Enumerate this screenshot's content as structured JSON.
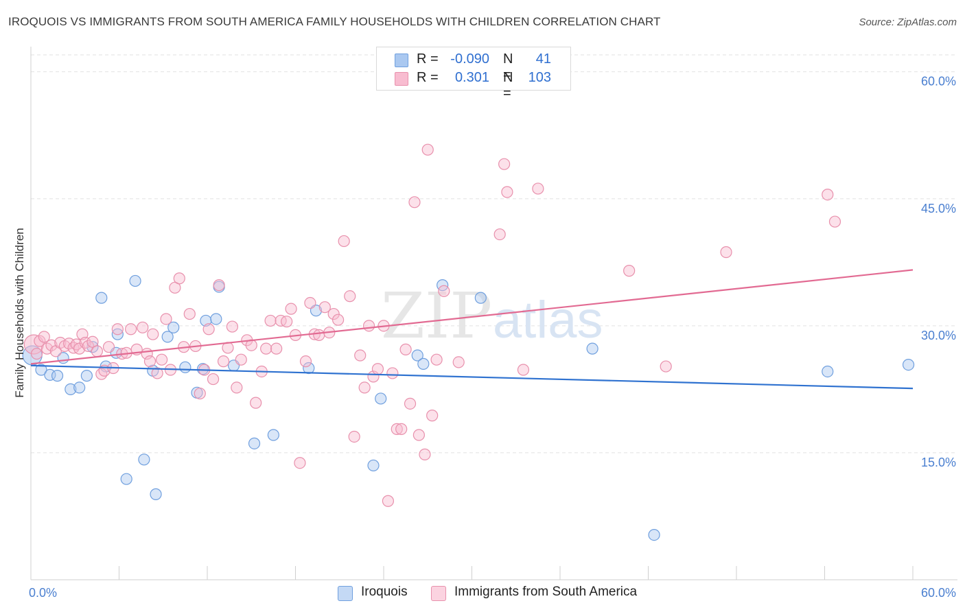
{
  "title": "IROQUOIS VS IMMIGRANTS FROM SOUTH AMERICA FAMILY HOUSEHOLDS WITH CHILDREN CORRELATION CHART",
  "source": "Source: ZipAtlas.com",
  "watermark": {
    "zip": "ZIP",
    "atlas": "atlas"
  },
  "legend_top": {
    "rows": [
      {
        "r_label": "R =",
        "r_value": "-0.090",
        "n_label": "N =",
        "n_value": "41"
      },
      {
        "r_label": "R =",
        "r_value": "0.301",
        "n_label": "N =",
        "n_value": "103"
      }
    ]
  },
  "legend_bottom": {
    "series1": "Iroquois",
    "series2": "Immigrants from South America"
  },
  "colors": {
    "series1_fill": "#aac8f0",
    "series1_stroke": "#6f9fde",
    "series1_line": "#2f72d0",
    "series2_fill": "#f8bcd0",
    "series2_stroke": "#e890ac",
    "series2_line": "#e26a92",
    "tick_text": "#4a7fd0",
    "grid": "#e2e2e2"
  },
  "chart_data": {
    "type": "scatter",
    "title": "IROQUOIS VS IMMIGRANTS FROM SOUTH AMERICA FAMILY HOUSEHOLDS WITH CHILDREN CORRELATION CHART",
    "xlabel": "",
    "ylabel": "Family Households with Children",
    "xlim": [
      0,
      60
    ],
    "ylim": [
      0,
      62
    ],
    "y_ticks": [
      15,
      30,
      45,
      60
    ],
    "y_tick_labels": [
      "15.0%",
      "30.0%",
      "45.0%",
      "60.0%"
    ],
    "x_tick_labels": [
      "0.0%",
      "60.0%"
    ],
    "grid": true,
    "legend_placement": "top-center",
    "series": [
      {
        "name": "Iroquois",
        "r": -0.09,
        "n": 41,
        "trend": {
          "x": [
            0,
            60
          ],
          "y": [
            25.3,
            22.6
          ]
        },
        "points": [
          [
            0.1,
            26.5
          ],
          [
            0.7,
            24.8
          ],
          [
            1.3,
            24.2
          ],
          [
            1.8,
            24.1
          ],
          [
            2.2,
            26.2
          ],
          [
            2.7,
            22.5
          ],
          [
            3.3,
            22.7
          ],
          [
            3.8,
            24.1
          ],
          [
            4.2,
            27.5
          ],
          [
            4.8,
            33.3
          ],
          [
            5.1,
            25.2
          ],
          [
            5.8,
            26.8
          ],
          [
            5.9,
            29.0
          ],
          [
            6.5,
            11.9
          ],
          [
            7.1,
            35.3
          ],
          [
            7.7,
            14.2
          ],
          [
            8.3,
            24.7
          ],
          [
            8.5,
            10.1
          ],
          [
            9.3,
            28.7
          ],
          [
            9.7,
            29.8
          ],
          [
            10.5,
            25.1
          ],
          [
            11.3,
            22.1
          ],
          [
            11.7,
            24.9
          ],
          [
            11.9,
            30.6
          ],
          [
            12.6,
            30.8
          ],
          [
            12.8,
            34.6
          ],
          [
            13.8,
            25.3
          ],
          [
            15.2,
            16.1
          ],
          [
            16.5,
            17.1
          ],
          [
            18.9,
            25.0
          ],
          [
            19.4,
            31.8
          ],
          [
            23.3,
            13.5
          ],
          [
            23.8,
            21.4
          ],
          [
            26.3,
            26.5
          ],
          [
            26.7,
            25.5
          ],
          [
            28.0,
            34.8
          ],
          [
            30.6,
            33.3
          ],
          [
            38.2,
            27.3
          ],
          [
            42.4,
            5.3
          ],
          [
            54.2,
            24.6
          ],
          [
            59.7,
            25.4
          ]
        ]
      },
      {
        "name": "Immigrants from South America",
        "r": 0.301,
        "n": 103,
        "trend": {
          "x": [
            0,
            60
          ],
          "y": [
            25.5,
            36.6
          ]
        },
        "points": [
          [
            0.2,
            27.8
          ],
          [
            0.4,
            26.7
          ],
          [
            0.6,
            28.2
          ],
          [
            0.9,
            28.7
          ],
          [
            1.1,
            27.3
          ],
          [
            1.4,
            27.7
          ],
          [
            1.7,
            27.0
          ],
          [
            2.0,
            28.0
          ],
          [
            2.3,
            27.6
          ],
          [
            2.6,
            27.9
          ],
          [
            2.9,
            27.4
          ],
          [
            3.1,
            27.8
          ],
          [
            3.3,
            27.3
          ],
          [
            3.5,
            29.0
          ],
          [
            3.7,
            28.0
          ],
          [
            3.9,
            27.6
          ],
          [
            4.2,
            28.1
          ],
          [
            4.5,
            27.0
          ],
          [
            4.8,
            24.3
          ],
          [
            5.0,
            24.7
          ],
          [
            5.3,
            27.5
          ],
          [
            5.6,
            25.0
          ],
          [
            5.9,
            29.6
          ],
          [
            6.2,
            26.7
          ],
          [
            6.5,
            26.8
          ],
          [
            6.8,
            29.6
          ],
          [
            7.2,
            27.2
          ],
          [
            7.6,
            29.8
          ],
          [
            7.9,
            26.7
          ],
          [
            8.1,
            25.8
          ],
          [
            8.3,
            29.0
          ],
          [
            8.6,
            24.4
          ],
          [
            8.9,
            26.0
          ],
          [
            9.2,
            30.8
          ],
          [
            9.5,
            24.8
          ],
          [
            9.8,
            34.5
          ],
          [
            10.1,
            35.6
          ],
          [
            10.4,
            27.5
          ],
          [
            10.8,
            31.4
          ],
          [
            11.2,
            27.6
          ],
          [
            11.5,
            22.0
          ],
          [
            11.8,
            24.8
          ],
          [
            12.1,
            29.6
          ],
          [
            12.4,
            23.7
          ],
          [
            12.8,
            34.8
          ],
          [
            13.1,
            25.8
          ],
          [
            13.4,
            27.4
          ],
          [
            13.7,
            29.9
          ],
          [
            14.0,
            22.7
          ],
          [
            14.3,
            26.0
          ],
          [
            14.7,
            28.3
          ],
          [
            15.0,
            27.7
          ],
          [
            15.3,
            20.9
          ],
          [
            15.7,
            24.6
          ],
          [
            16.0,
            27.3
          ],
          [
            16.3,
            30.6
          ],
          [
            16.7,
            27.3
          ],
          [
            17.0,
            30.6
          ],
          [
            17.4,
            30.5
          ],
          [
            17.7,
            32.0
          ],
          [
            18.0,
            28.9
          ],
          [
            18.3,
            13.8
          ],
          [
            18.7,
            25.8
          ],
          [
            19.0,
            32.7
          ],
          [
            19.3,
            29.0
          ],
          [
            19.6,
            28.9
          ],
          [
            20.0,
            32.2
          ],
          [
            20.3,
            29.2
          ],
          [
            20.6,
            31.4
          ],
          [
            20.9,
            30.7
          ],
          [
            21.3,
            40.0
          ],
          [
            21.7,
            33.5
          ],
          [
            22.0,
            16.9
          ],
          [
            22.4,
            26.5
          ],
          [
            22.7,
            22.7
          ],
          [
            23.0,
            30.0
          ],
          [
            23.3,
            24.0
          ],
          [
            23.6,
            24.9
          ],
          [
            24.0,
            30.0
          ],
          [
            24.3,
            9.3
          ],
          [
            24.6,
            24.4
          ],
          [
            24.9,
            17.8
          ],
          [
            25.2,
            17.8
          ],
          [
            25.5,
            27.2
          ],
          [
            25.8,
            20.8
          ],
          [
            26.1,
            44.6
          ],
          [
            26.4,
            17.1
          ],
          [
            26.8,
            14.8
          ],
          [
            27.0,
            50.8
          ],
          [
            27.3,
            19.4
          ],
          [
            27.6,
            26.0
          ],
          [
            28.1,
            34.1
          ],
          [
            29.1,
            25.7
          ],
          [
            31.9,
            40.8
          ],
          [
            32.2,
            49.1
          ],
          [
            32.4,
            45.8
          ],
          [
            33.5,
            24.8
          ],
          [
            34.5,
            46.2
          ],
          [
            40.7,
            36.5
          ],
          [
            43.2,
            25.2
          ],
          [
            47.3,
            38.7
          ],
          [
            54.2,
            45.5
          ],
          [
            54.7,
            42.3
          ]
        ]
      }
    ]
  }
}
